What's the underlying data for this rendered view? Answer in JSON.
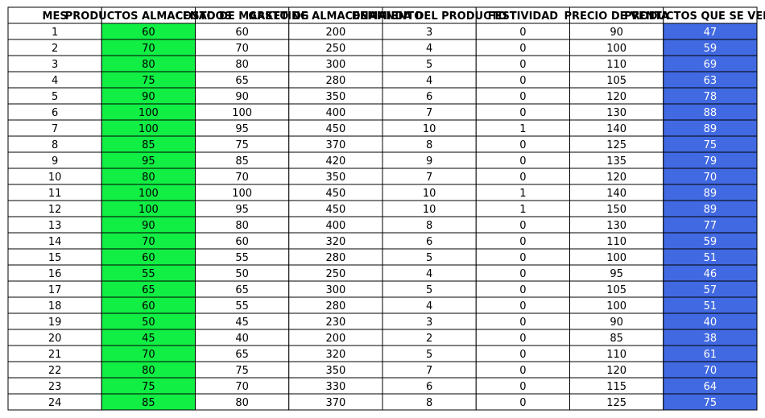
{
  "chart_data": {
    "type": "table",
    "columns": [
      "MES",
      "PRODUCTOS ALMACENADOS",
      "COSTO DE MARKETING",
      "GASTO DE ALMACENAMIENTO",
      "DEMANDA DEL PRODUCTO",
      "FESTIVIDAD",
      "PRECIO DE VENTA",
      "PRODUCTOS QUE SE VENDEN"
    ],
    "rows": [
      [
        1,
        60,
        60,
        200,
        3,
        0,
        90,
        47
      ],
      [
        2,
        70,
        70,
        250,
        4,
        0,
        100,
        59
      ],
      [
        3,
        80,
        80,
        300,
        5,
        0,
        110,
        69
      ],
      [
        4,
        75,
        65,
        280,
        4,
        0,
        105,
        63
      ],
      [
        5,
        90,
        90,
        350,
        6,
        0,
        120,
        78
      ],
      [
        6,
        100,
        100,
        400,
        7,
        0,
        130,
        88
      ],
      [
        7,
        100,
        95,
        450,
        10,
        1,
        140,
        89
      ],
      [
        8,
        85,
        75,
        370,
        8,
        0,
        125,
        75
      ],
      [
        9,
        95,
        85,
        420,
        9,
        0,
        135,
        79
      ],
      [
        10,
        80,
        70,
        350,
        7,
        0,
        120,
        70
      ],
      [
        11,
        100,
        100,
        450,
        10,
        1,
        140,
        89
      ],
      [
        12,
        100,
        95,
        450,
        10,
        1,
        150,
        89
      ],
      [
        13,
        90,
        80,
        400,
        8,
        0,
        130,
        77
      ],
      [
        14,
        70,
        60,
        320,
        6,
        0,
        110,
        59
      ],
      [
        15,
        60,
        55,
        280,
        5,
        0,
        100,
        51
      ],
      [
        16,
        55,
        50,
        250,
        4,
        0,
        95,
        46
      ],
      [
        17,
        65,
        65,
        300,
        5,
        0,
        105,
        57
      ],
      [
        18,
        60,
        55,
        280,
        4,
        0,
        100,
        51
      ],
      [
        19,
        50,
        45,
        230,
        3,
        0,
        90,
        40
      ],
      [
        20,
        45,
        40,
        200,
        2,
        0,
        85,
        38
      ],
      [
        21,
        70,
        65,
        320,
        5,
        0,
        110,
        61
      ],
      [
        22,
        80,
        75,
        350,
        7,
        0,
        120,
        70
      ],
      [
        23,
        75,
        70,
        330,
        6,
        0,
        115,
        64
      ],
      [
        24,
        85,
        80,
        370,
        8,
        0,
        125,
        75
      ]
    ],
    "highlight_colors": {
      "PRODUCTOS ALMACENADOS": "#11ee44",
      "PRODUCTOS QUE SE VENDEN": "#4169e1"
    },
    "text_color_on_highlight": {
      "PRODUCTOS ALMACENADOS": "#000000",
      "PRODUCTOS QUE SE VENDEN": "#ffffff"
    },
    "border_color": "#000000",
    "grid": true
  }
}
